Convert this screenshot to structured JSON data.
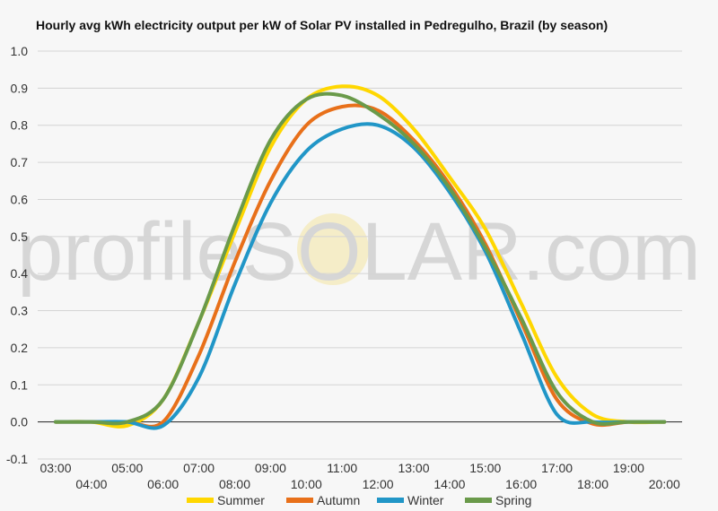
{
  "chart_data": {
    "type": "line",
    "title": "Hourly avg kWh electricity output per kW of Solar PV installed in Pedregulho, Brazil (by season)",
    "xlabel": "",
    "ylabel": "",
    "ylim": [
      -0.1,
      1.0
    ],
    "yticks": [
      "1.0",
      "0.9",
      "0.8",
      "0.7",
      "0.6",
      "0.5",
      "0.4",
      "0.3",
      "0.2",
      "0.1",
      "0.0",
      "-0.1"
    ],
    "ytick_values": [
      1.0,
      0.9,
      0.8,
      0.7,
      0.6,
      0.5,
      0.4,
      0.3,
      0.2,
      0.1,
      0.0,
      -0.1
    ],
    "x": [
      "03:00",
      "04:00",
      "05:00",
      "06:00",
      "07:00",
      "08:00",
      "09:00",
      "10:00",
      "11:00",
      "12:00",
      "13:00",
      "14:00",
      "15:00",
      "16:00",
      "17:00",
      "18:00",
      "19:00",
      "20:00"
    ],
    "grid": true,
    "legend_position": "bottom",
    "watermark": "profileSOLAR.com",
    "series": [
      {
        "name": "Summer",
        "color": "#ffd700",
        "values": [
          0.0,
          0.0,
          -0.01,
          0.06,
          0.27,
          0.51,
          0.74,
          0.87,
          0.905,
          0.88,
          0.79,
          0.66,
          0.52,
          0.32,
          0.12,
          0.02,
          0.0,
          0.0
        ]
      },
      {
        "name": "Autumn",
        "color": "#e8701a",
        "values": [
          0.0,
          0.0,
          0.0,
          0.0,
          0.18,
          0.43,
          0.65,
          0.8,
          0.85,
          0.84,
          0.76,
          0.64,
          0.48,
          0.27,
          0.06,
          -0.005,
          0.0,
          0.0
        ]
      },
      {
        "name": "Winter",
        "color": "#2196c7",
        "values": [
          0.0,
          0.0,
          0.0,
          -0.01,
          0.12,
          0.37,
          0.59,
          0.73,
          0.79,
          0.8,
          0.74,
          0.62,
          0.46,
          0.24,
          0.02,
          0.0,
          0.0,
          0.0
        ]
      },
      {
        "name": "Spring",
        "color": "#6a9a4a",
        "values": [
          0.0,
          0.0,
          0.0,
          0.06,
          0.27,
          0.53,
          0.76,
          0.87,
          0.88,
          0.83,
          0.75,
          0.63,
          0.47,
          0.28,
          0.08,
          0.0,
          0.0,
          0.0
        ]
      }
    ]
  }
}
